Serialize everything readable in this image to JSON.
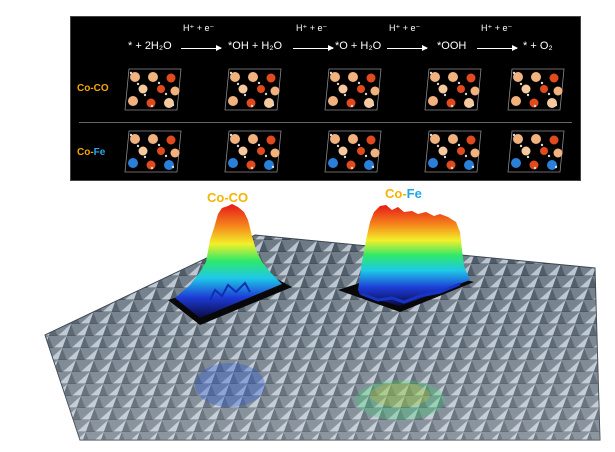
{
  "reaction": {
    "reactants": "* + 2H₂O",
    "step1": "*OH + H₂O",
    "step2": "*O + H₂O",
    "step3": "*OOH",
    "products": "* + O₂",
    "arrow_label": "H⁺ + e⁻"
  },
  "rows": {
    "co_co": {
      "part1": "Co-",
      "part2": "CO"
    },
    "co_fe": {
      "part1": "Co-",
      "part2": "Fe"
    }
  },
  "peaks": {
    "co_co": {
      "part1": "Co-",
      "part2": "CO"
    },
    "co_fe": {
      "part1": "Co-",
      "part2": "Fe"
    }
  },
  "colors": {
    "co_label": "#f4b400",
    "fe_label": "#1ea7e4",
    "panel_bg": "#000000"
  }
}
